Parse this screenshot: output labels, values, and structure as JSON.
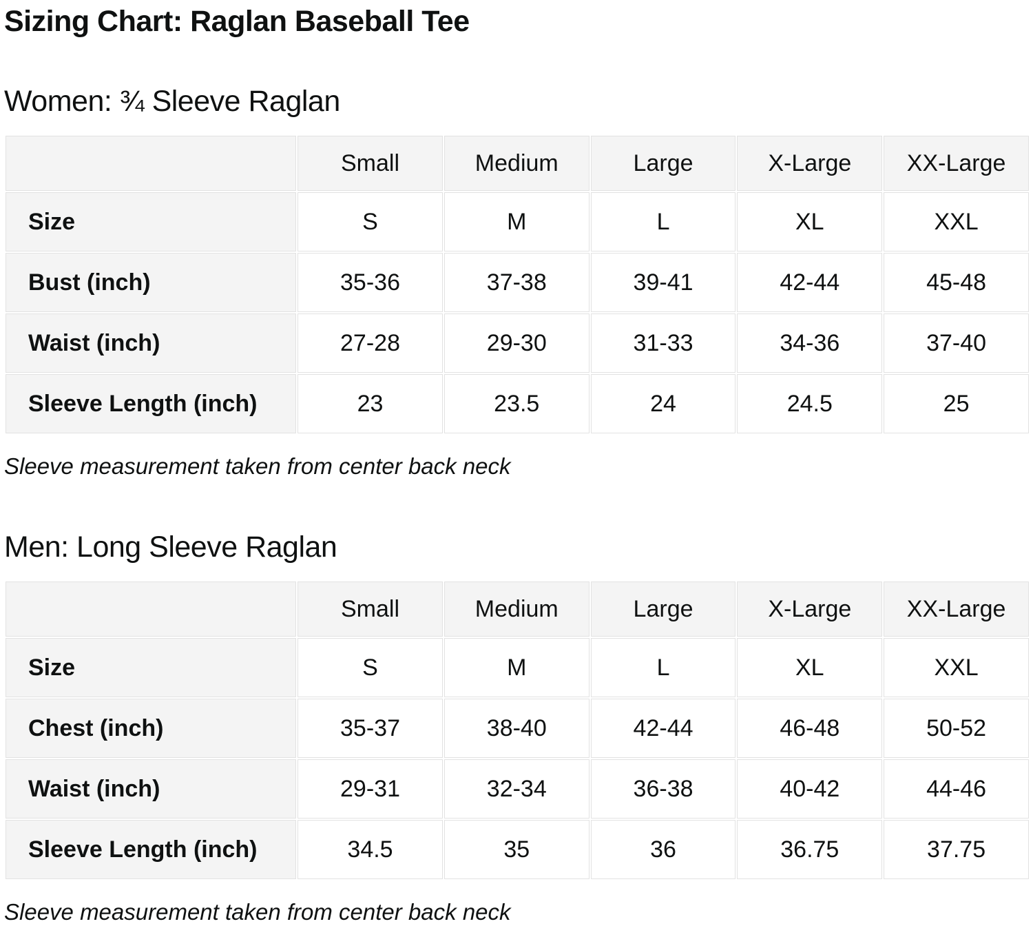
{
  "page": {
    "title": "Sizing Chart: Raglan Baseball Tee"
  },
  "colors": {
    "text": "#0f1111",
    "header_cell_background": "#f4f4f4",
    "cell_background": "#ffffff",
    "cell_border": "#e2e2e2"
  },
  "sections": [
    {
      "heading": "Women: ¾ Sleeve Raglan",
      "columns": [
        "",
        "Small",
        "Medium",
        "Large",
        "X-Large",
        "XX-Large"
      ],
      "rows": [
        {
          "label": "Size",
          "values": [
            "S",
            "M",
            "L",
            "XL",
            "XXL"
          ]
        },
        {
          "label": "Bust (inch)",
          "values": [
            "35-36",
            "37-38",
            "39-41",
            "42-44",
            "45-48"
          ]
        },
        {
          "label": "Waist (inch)",
          "values": [
            "27-28",
            "29-30",
            "31-33",
            "34-36",
            "37-40"
          ]
        },
        {
          "label": "Sleeve Length (inch)",
          "values": [
            "23",
            "23.5",
            "24",
            "24.5",
            "25"
          ]
        }
      ],
      "note": "Sleeve measurement taken from center back neck"
    },
    {
      "heading": "Men: Long Sleeve Raglan",
      "columns": [
        "",
        "Small",
        "Medium",
        "Large",
        "X-Large",
        "XX-Large"
      ],
      "rows": [
        {
          "label": "Size",
          "values": [
            "S",
            "M",
            "L",
            "XL",
            "XXL"
          ]
        },
        {
          "label": "Chest (inch)",
          "values": [
            "35-37",
            "38-40",
            "42-44",
            "46-48",
            "50-52"
          ]
        },
        {
          "label": "Waist (inch)",
          "values": [
            "29-31",
            "32-34",
            "36-38",
            "40-42",
            "44-46"
          ]
        },
        {
          "label": "Sleeve Length (inch)",
          "values": [
            "34.5",
            "35",
            "36",
            "36.75",
            "37.75"
          ]
        }
      ],
      "note": "Sleeve measurement taken from center back neck"
    }
  ]
}
